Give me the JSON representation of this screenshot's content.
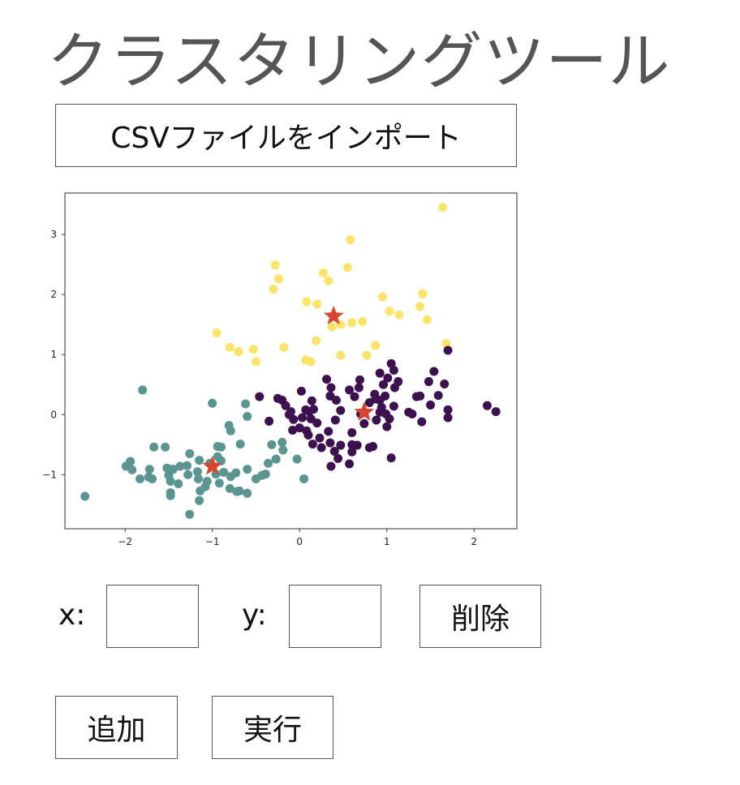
{
  "title": "クラスタリングツール",
  "import_button": "CSVファイルをインポート",
  "controls": {
    "x_label": "x:",
    "x_value": "",
    "y_label": "y:",
    "y_value": "",
    "delete_button": "削除",
    "add_button": "追加",
    "run_button": "実行"
  },
  "chart_data": {
    "type": "scatter",
    "xlim": [
      -2.69,
      2.49
    ],
    "ylim": [
      -1.9,
      3.69
    ],
    "xticks": [
      "−2",
      "−1",
      "0",
      "1",
      "2"
    ],
    "xtick_values": [
      -2,
      -1,
      0,
      1,
      2
    ],
    "yticks": [
      "−1",
      "0",
      "1",
      "2",
      "3"
    ],
    "ytick_values": [
      -1,
      0,
      1,
      2,
      3
    ],
    "grid": false,
    "colors": {
      "cluster_yellow": "#fbe469",
      "cluster_teal": "#5b9590",
      "cluster_purple": "#3d1150",
      "centroid": "#d9452f"
    },
    "series": [
      {
        "color": "#fbe469",
        "points": [
          [
            1.64,
            3.45
          ],
          [
            0.58,
            2.91
          ],
          [
            -0.28,
            2.49
          ],
          [
            -0.24,
            2.26
          ],
          [
            -0.3,
            2.09
          ],
          [
            0.27,
            2.36
          ],
          [
            0.33,
            2.23
          ],
          [
            0.55,
            2.45
          ],
          [
            0.95,
            1.96
          ],
          [
            1.41,
            2.01
          ],
          [
            1.38,
            1.8
          ],
          [
            1.14,
            1.66
          ],
          [
            1.46,
            1.58
          ],
          [
            0.6,
            1.53
          ],
          [
            0.47,
            1.5
          ],
          [
            0.37,
            1.46
          ],
          [
            0.72,
            1.55
          ],
          [
            0.08,
            1.88
          ],
          [
            0.2,
            1.84
          ],
          [
            -0.18,
            1.12
          ],
          [
            0.07,
            0.91
          ],
          [
            0.13,
            0.88
          ],
          [
            0.47,
            0.99
          ],
          [
            0.77,
            0.99
          ],
          [
            0.87,
            1.15
          ],
          [
            1.68,
            1.18
          ],
          [
            -0.95,
            1.36
          ],
          [
            -0.8,
            1.12
          ],
          [
            -0.7,
            1.05
          ],
          [
            -0.53,
            1.09
          ],
          [
            -0.5,
            0.88
          ],
          [
            0.19,
            1.23
          ],
          [
            1.03,
            1.72
          ]
        ]
      },
      {
        "color": "#5b9590",
        "points": [
          [
            -2.46,
            -1.36
          ],
          [
            -1.8,
            0.41
          ],
          [
            -1.0,
            0.19
          ],
          [
            -0.62,
            0.18
          ],
          [
            -0.6,
            -0.03
          ],
          [
            -0.81,
            -0.18
          ],
          [
            -0.79,
            -0.27
          ],
          [
            -0.9,
            -0.54
          ],
          [
            -0.68,
            -0.49
          ],
          [
            -0.94,
            -0.53
          ],
          [
            -1.67,
            -0.54
          ],
          [
            -1.54,
            -0.54
          ],
          [
            -1.99,
            -0.86
          ],
          [
            -1.94,
            -0.78
          ],
          [
            -1.92,
            -0.92
          ],
          [
            -1.72,
            -0.91
          ],
          [
            -1.73,
            -1.04
          ],
          [
            -1.69,
            -1.07
          ],
          [
            -1.52,
            -0.89
          ],
          [
            -1.5,
            -1.01
          ],
          [
            -1.45,
            -0.91
          ],
          [
            -1.48,
            -1.11
          ],
          [
            -1.48,
            -1.3
          ],
          [
            -1.48,
            -1.35
          ],
          [
            -1.26,
            -0.65
          ],
          [
            -1.29,
            -0.85
          ],
          [
            -1.15,
            -0.76
          ],
          [
            -1.17,
            -0.95
          ],
          [
            -1.03,
            -0.81
          ],
          [
            -0.94,
            -0.7
          ],
          [
            -0.9,
            -0.77
          ],
          [
            -1.06,
            -1.11
          ],
          [
            -1.08,
            -1.2
          ],
          [
            -1.14,
            -1.27
          ],
          [
            -1.15,
            -1.43
          ],
          [
            -1.26,
            -1.66
          ],
          [
            -1.16,
            -1.07
          ],
          [
            -0.96,
            -0.99
          ],
          [
            -0.87,
            -0.96
          ],
          [
            -0.79,
            -1.03
          ],
          [
            -0.73,
            -0.97
          ],
          [
            -0.72,
            -1.28
          ],
          [
            -0.8,
            -1.23
          ],
          [
            -0.69,
            -1.27
          ],
          [
            -0.6,
            -1.31
          ],
          [
            -0.6,
            -0.91
          ],
          [
            -0.5,
            -1.07
          ],
          [
            -0.43,
            -1.01
          ],
          [
            -0.39,
            -0.99
          ],
          [
            -0.36,
            -0.81
          ],
          [
            -0.27,
            -0.74
          ],
          [
            -0.19,
            -0.59
          ],
          [
            -0.2,
            -0.46
          ],
          [
            -0.32,
            -0.5
          ],
          [
            -0.03,
            -0.74
          ],
          [
            0.05,
            -1.07
          ],
          [
            -1.28,
            -1.0
          ],
          [
            -1.39,
            -1.15
          ],
          [
            -1.83,
            -1.07
          ],
          [
            -1.37,
            -0.86
          ],
          [
            -0.92,
            -1.14
          ]
        ]
      },
      {
        "color": "#3d1150",
        "points": [
          [
            -0.46,
            0.3
          ],
          [
            -0.25,
            0.27
          ],
          [
            -0.2,
            0.24
          ],
          [
            -0.16,
            0.15
          ],
          [
            -0.12,
            0.0
          ],
          [
            -0.07,
            -0.08
          ],
          [
            -0.35,
            -0.11
          ],
          [
            0.03,
            -0.05
          ],
          [
            0.11,
            0.05
          ],
          [
            0.16,
            0.09
          ],
          [
            0.0,
            -0.22
          ],
          [
            0.2,
            -0.14
          ],
          [
            0.08,
            -0.27
          ],
          [
            0.33,
            -0.28
          ],
          [
            0.41,
            -0.09
          ],
          [
            0.25,
            -0.55
          ],
          [
            0.15,
            -0.49
          ],
          [
            0.23,
            -0.39
          ],
          [
            0.35,
            -0.47
          ],
          [
            0.4,
            -0.61
          ],
          [
            0.47,
            -0.51
          ],
          [
            0.36,
            -0.86
          ],
          [
            0.44,
            -0.73
          ],
          [
            0.57,
            -0.82
          ],
          [
            0.6,
            -0.5
          ],
          [
            0.66,
            -0.51
          ],
          [
            0.6,
            -0.62
          ],
          [
            0.8,
            -0.55
          ],
          [
            0.84,
            -0.53
          ],
          [
            1.05,
            -0.72
          ],
          [
            0.6,
            -0.3
          ],
          [
            0.74,
            -0.15
          ],
          [
            0.88,
            -0.09
          ],
          [
            0.99,
            0.01
          ],
          [
            1.03,
            -0.07
          ],
          [
            1.08,
            0.14
          ],
          [
            0.98,
            0.31
          ],
          [
            0.92,
            0.24
          ],
          [
            0.86,
            0.34
          ],
          [
            0.92,
            0.69
          ],
          [
            1.08,
            0.74
          ],
          [
            0.96,
            0.5
          ],
          [
            1.01,
            0.61
          ],
          [
            1.05,
            0.85
          ],
          [
            1.13,
            0.55
          ],
          [
            1.09,
            0.45
          ],
          [
            0.63,
            0.3
          ],
          [
            0.68,
            0.45
          ],
          [
            0.69,
            0.58
          ],
          [
            0.8,
            0.2
          ],
          [
            0.87,
            0.26
          ],
          [
            0.94,
            0.12
          ],
          [
            0.92,
            0.04
          ],
          [
            0.57,
            0.41
          ],
          [
            0.42,
            0.24
          ],
          [
            0.35,
            0.31
          ],
          [
            0.02,
            0.39
          ],
          [
            0.14,
            0.23
          ],
          [
            0.13,
            -0.07
          ],
          [
            1.25,
            0.04
          ],
          [
            1.29,
            0.01
          ],
          [
            1.38,
            0.31
          ],
          [
            1.48,
            0.55
          ],
          [
            1.5,
            0.16
          ],
          [
            1.59,
            0.32
          ],
          [
            1.54,
            0.72
          ],
          [
            1.66,
            0.51
          ],
          [
            1.7,
            1.07
          ],
          [
            1.7,
            0.08
          ],
          [
            1.7,
            -0.05
          ],
          [
            2.15,
            0.15
          ],
          [
            2.25,
            0.05
          ],
          [
            0.31,
            0.59
          ],
          [
            0.36,
            0.45
          ],
          [
            -0.1,
            0.05
          ],
          [
            -0.08,
            -0.26
          ],
          [
            0.1,
            -0.34
          ],
          [
            0.47,
            0.07
          ],
          [
            0.7,
            0.01
          ],
          [
            1.0,
            -0.2
          ],
          [
            0.07,
            0.08
          ],
          [
            1.34,
            0.3
          ],
          [
            1.4,
            -0.12
          ]
        ]
      }
    ],
    "centroids": [
      [
        0.39,
        1.64
      ],
      [
        0.74,
        0.04
      ],
      [
        -1.0,
        -0.86
      ]
    ]
  }
}
